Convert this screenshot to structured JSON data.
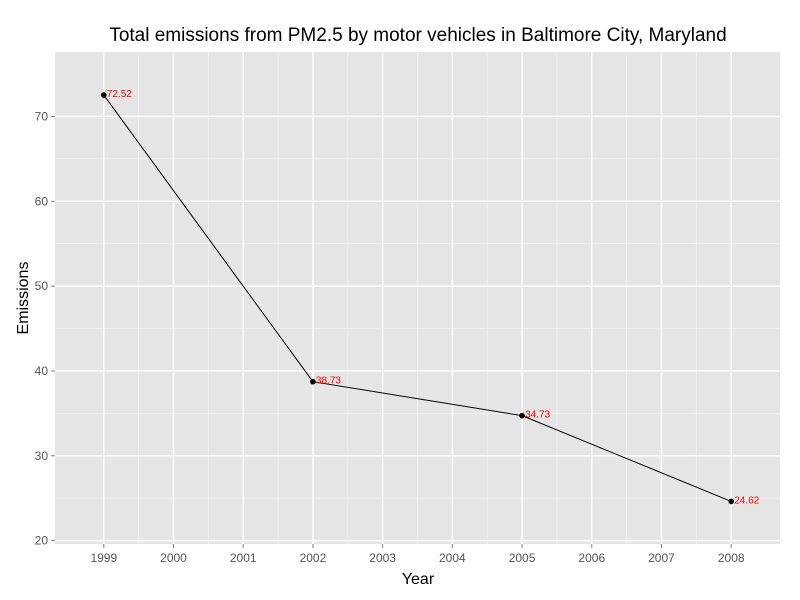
{
  "chart_data": {
    "type": "line",
    "title": "Total emissions from PM2.5 by motor vehicles in Baltimore City, Maryland",
    "xlabel": "Year",
    "ylabel": "Emissions",
    "xlim": [
      1998.3,
      2008.7
    ],
    "ylim": [
      19.6,
      77.6
    ],
    "x_ticks": [
      1999,
      2000,
      2001,
      2002,
      2003,
      2004,
      2005,
      2006,
      2007,
      2008
    ],
    "y_ticks": [
      20,
      30,
      40,
      50,
      60,
      70
    ],
    "grid": true,
    "legend": "none",
    "colors": {
      "panel": "#e5e5e5",
      "grid_major": "#ffffff",
      "line": "#000000",
      "point_label": "#ff0000"
    },
    "series": [
      {
        "x": [
          1999,
          2002,
          2005,
          2008
        ],
        "values": [
          72.52,
          38.73,
          34.73,
          24.62
        ],
        "labels": [
          "72.52",
          "38.73",
          "34.73",
          "24.62"
        ]
      }
    ]
  }
}
